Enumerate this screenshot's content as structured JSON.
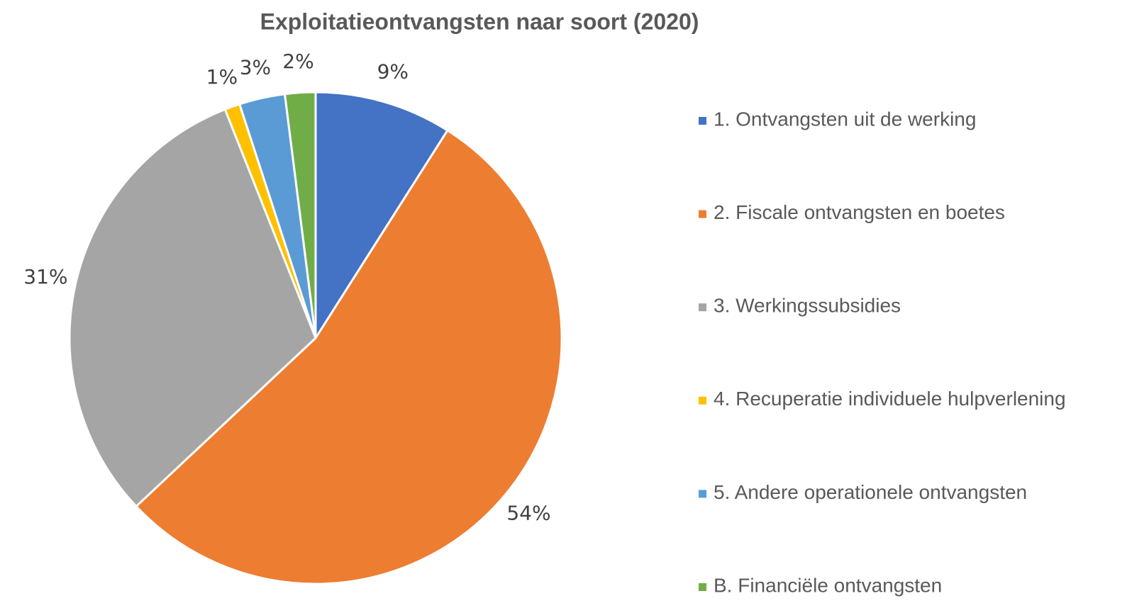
{
  "chart_data": {
    "type": "pie",
    "title": "Exploitatieontvangsten naar soort (2020)",
    "categories": [
      "1. Ontvangsten uit de werking",
      "2. Fiscale ontvangsten en boetes",
      "3. Werkingssubsidies",
      "4. Recuperatie individuele hulpverlening",
      "5. Andere operationele ontvangsten",
      "B. Financiële ontvangsten"
    ],
    "values": [
      9,
      54,
      31,
      1,
      3,
      2
    ],
    "colors": [
      "#4472c4",
      "#ed7d31",
      "#a5a5a5",
      "#ffc000",
      "#5b9bd5",
      "#70ad47"
    ],
    "value_labels": [
      "9%",
      "54%",
      "31%",
      "1%",
      "3%",
      "2%"
    ],
    "legend": "right"
  }
}
